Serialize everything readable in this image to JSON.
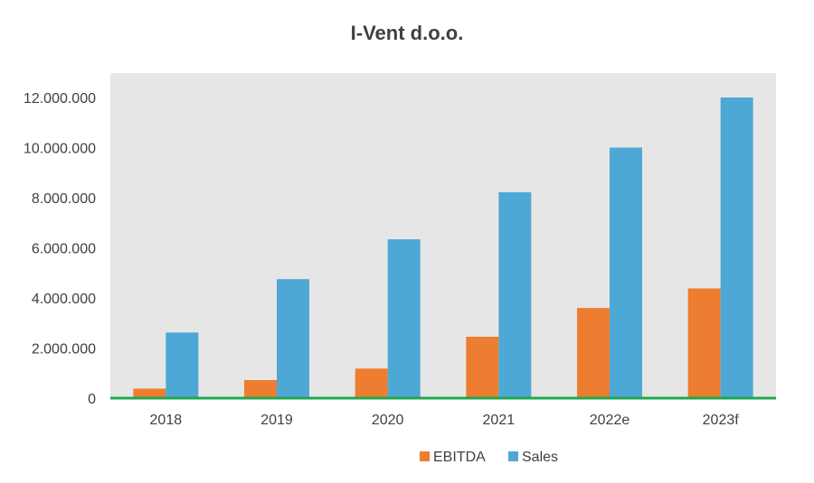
{
  "chart_data": {
    "type": "bar",
    "title": "I-Vent d.o.o.",
    "categories": [
      "2018",
      "2019",
      "2020",
      "2021",
      "2022e",
      "2023f"
    ],
    "series": [
      {
        "name": "EBITDA",
        "color": "#ED7D31",
        "values": [
          380000,
          720000,
          1180000,
          2450000,
          3600000,
          4380000
        ]
      },
      {
        "name": "Sales",
        "color": "#4EA8D6",
        "values": [
          2620000,
          4750000,
          6340000,
          8220000,
          10000000,
          12000000
        ]
      }
    ],
    "ylim": [
      0,
      12000000
    ],
    "yticks": [
      0,
      2000000,
      4000000,
      6000000,
      8000000,
      10000000,
      12000000
    ],
    "ytick_labels": [
      "0",
      "2.000.000",
      "4.000.000",
      "6.000.000",
      "8.000.000",
      "10.000.000",
      "12.000.000"
    ],
    "plot_background": "#E7E6E6",
    "baseline_color": "#1FA84F",
    "grid": false,
    "legend": "bottom",
    "xlabel": "",
    "ylabel": ""
  }
}
